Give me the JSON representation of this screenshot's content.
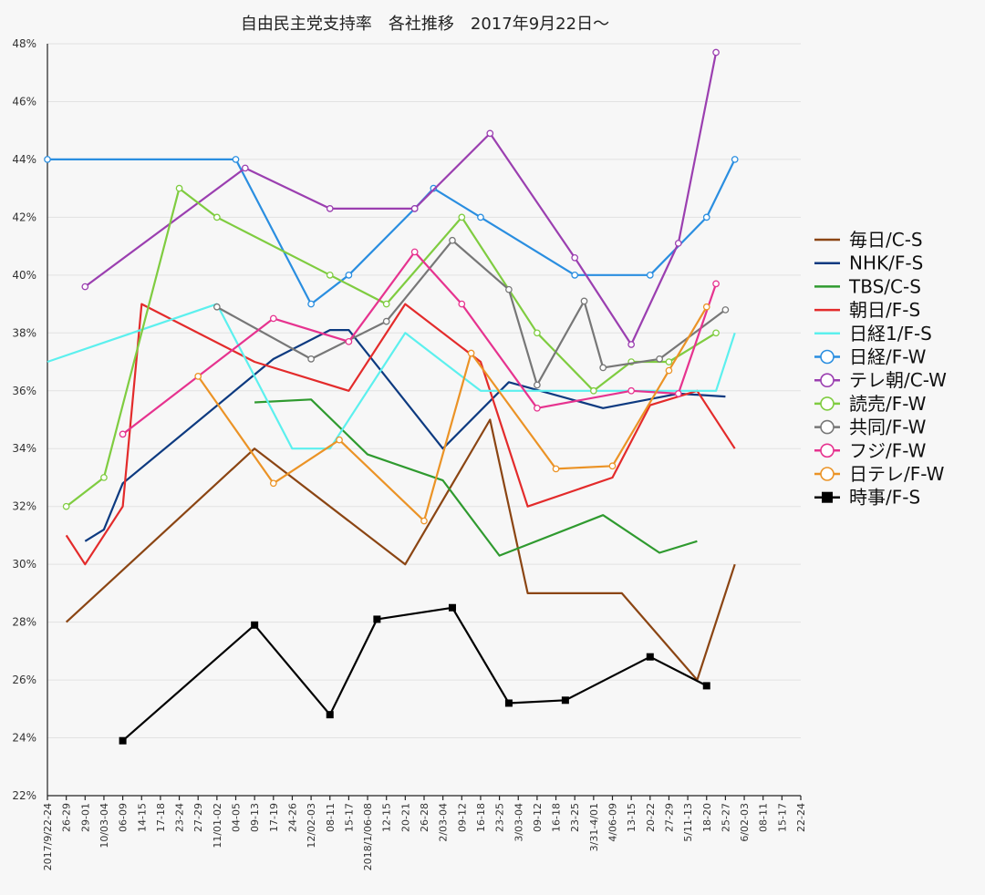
{
  "chart_data": {
    "type": "line",
    "title": "自由民主党支持率　各社推移　2017年9月22日〜",
    "xlabel": "",
    "ylabel": "",
    "ylim": [
      22,
      48
    ],
    "yticks": [
      22,
      24,
      26,
      28,
      30,
      32,
      34,
      36,
      38,
      40,
      42,
      44,
      46,
      48
    ],
    "ytick_labels": [
      "22%",
      "24%",
      "26%",
      "28%",
      "30%",
      "32%",
      "34%",
      "36%",
      "38%",
      "40%",
      "42%",
      "44%",
      "46%",
      "48%"
    ],
    "categories": [
      "2017/9/22-24",
      "26-29",
      "29-01",
      "10/03-04",
      "06-09",
      "14-15",
      "17-18",
      "23-24",
      "27-29",
      "11/01-02",
      "04-05",
      "09-13",
      "17-19",
      "24-26",
      "12/02-03",
      "08-11",
      "15-17",
      "2018/1/06-08",
      "12-15",
      "20-21",
      "26-28",
      "2/03-04",
      "09-12",
      "16-18",
      "23-25",
      "3/03-04",
      "09-12",
      "16-18",
      "23-25",
      "3/31-4/01",
      "4/06-09",
      "13-15",
      "20-22",
      "27-29",
      "5/11-13",
      "18-20",
      "25-27",
      "6/02-03",
      "08-11",
      "15-17",
      "22-24"
    ],
    "grid": true,
    "legend_position": "right",
    "series": [
      {
        "name": "毎日/C-S",
        "color": "#8B4513",
        "marker": "none",
        "points": [
          [
            1,
            28
          ],
          [
            11,
            34
          ],
          [
            19,
            30
          ],
          [
            23.5,
            35
          ],
          [
            25.5,
            29
          ],
          [
            30.5,
            29
          ],
          [
            34.5,
            26
          ],
          [
            36.5,
            30
          ]
        ]
      },
      {
        "name": "NHK/F-S",
        "color": "#0d3a80",
        "marker": "none",
        "points": [
          [
            2,
            30.8
          ],
          [
            3,
            31.2
          ],
          [
            4,
            32.8
          ],
          [
            12,
            37.1
          ],
          [
            15,
            38.1
          ],
          [
            16,
            38.1
          ],
          [
            21,
            34
          ],
          [
            24.5,
            36.3
          ],
          [
            29.5,
            35.4
          ],
          [
            33.5,
            35.9
          ],
          [
            36,
            35.8
          ]
        ]
      },
      {
        "name": "TBS/C-S",
        "color": "#2f9a2f",
        "marker": "none",
        "points": [
          [
            11,
            35.6
          ],
          [
            14,
            35.7
          ],
          [
            17,
            33.8
          ],
          [
            21,
            32.9
          ],
          [
            24,
            30.3
          ],
          [
            29.5,
            31.7
          ],
          [
            32.5,
            30.4
          ],
          [
            34.5,
            30.8
          ]
        ]
      },
      {
        "name": "朝日/F-S",
        "color": "#e32b2b",
        "marker": "none",
        "points": [
          [
            1,
            31
          ],
          [
            2,
            30
          ],
          [
            4,
            32
          ],
          [
            5,
            39
          ],
          [
            11,
            37
          ],
          [
            16,
            36
          ],
          [
            19,
            39
          ],
          [
            23,
            37
          ],
          [
            25.5,
            32
          ],
          [
            30,
            33
          ],
          [
            32,
            35.5
          ],
          [
            34.5,
            36
          ],
          [
            36.5,
            34
          ]
        ]
      },
      {
        "name": "日経1/F-S",
        "color": "#5cf0ee",
        "marker": "none",
        "points": [
          [
            0,
            37
          ],
          [
            9,
            39
          ],
          [
            13,
            34
          ],
          [
            15,
            34
          ],
          [
            19,
            38
          ],
          [
            23,
            36
          ],
          [
            33.5,
            36
          ],
          [
            35.5,
            36
          ],
          [
            36.5,
            38
          ]
        ]
      },
      {
        "name": "日経/F-W",
        "color": "#2a8ee0",
        "marker": "circle",
        "points": [
          [
            0,
            44
          ],
          [
            10,
            44
          ],
          [
            14,
            39
          ],
          [
            16,
            40
          ],
          [
            19.5,
            42.3
          ],
          [
            20.5,
            43
          ],
          [
            23,
            42
          ],
          [
            28,
            40
          ],
          [
            32,
            40
          ],
          [
            35,
            42
          ],
          [
            36.5,
            44
          ]
        ]
      },
      {
        "name": "テレ朝/C-W",
        "color": "#9b3fb0",
        "marker": "circle",
        "points": [
          [
            2,
            39.6
          ],
          [
            10.5,
            43.7
          ],
          [
            15,
            42.3
          ],
          [
            19.5,
            42.3
          ],
          [
            23.5,
            44.9
          ],
          [
            28,
            40.6
          ],
          [
            31,
            37.6
          ],
          [
            33.5,
            41.1
          ],
          [
            35.5,
            47.7
          ]
        ]
      },
      {
        "name": "読売/F-W",
        "color": "#7fcc40",
        "marker": "circle",
        "points": [
          [
            1,
            32
          ],
          [
            3,
            33
          ],
          [
            7,
            43
          ],
          [
            9,
            42
          ],
          [
            15,
            40
          ],
          [
            18,
            39
          ],
          [
            22,
            42
          ],
          [
            26,
            38
          ],
          [
            29,
            36
          ],
          [
            31,
            37
          ],
          [
            33,
            37
          ],
          [
            35.5,
            38
          ]
        ]
      },
      {
        "name": "共同/F-W",
        "color": "#777777",
        "marker": "circle",
        "points": [
          [
            9,
            38.9
          ],
          [
            14,
            37.1
          ],
          [
            18,
            38.4
          ],
          [
            21.5,
            41.2
          ],
          [
            24.5,
            39.5
          ],
          [
            26,
            36.2
          ],
          [
            28.5,
            39.1
          ],
          [
            29.5,
            36.8
          ],
          [
            32.5,
            37.1
          ],
          [
            36,
            38.8
          ]
        ]
      },
      {
        "name": "フジ/F-W",
        "color": "#e6338f",
        "marker": "circle",
        "points": [
          [
            4,
            34.5
          ],
          [
            12,
            38.5
          ],
          [
            16,
            37.7
          ],
          [
            19.5,
            40.8
          ],
          [
            22,
            39
          ],
          [
            26,
            35.4
          ],
          [
            31,
            36
          ],
          [
            33.5,
            35.9
          ],
          [
            35.5,
            39.7
          ]
        ]
      },
      {
        "name": "日テレ/F-W",
        "color": "#eb9326",
        "marker": "circle",
        "points": [
          [
            8,
            36.5
          ],
          [
            12,
            32.8
          ],
          [
            15.5,
            34.3
          ],
          [
            20,
            31.5
          ],
          [
            22.5,
            37.3
          ],
          [
            27,
            33.3
          ],
          [
            30,
            33.4
          ],
          [
            33,
            36.7
          ],
          [
            35,
            38.9
          ]
        ]
      },
      {
        "name": "時事/F-S",
        "color": "#000000",
        "marker": "square",
        "points": [
          [
            4,
            23.9
          ],
          [
            11,
            27.9
          ],
          [
            15,
            24.8
          ],
          [
            17.5,
            28.1
          ],
          [
            21.5,
            28.5
          ],
          [
            24.5,
            25.2
          ],
          [
            27.5,
            25.3
          ],
          [
            32,
            26.8
          ],
          [
            35,
            25.8
          ]
        ]
      }
    ]
  }
}
